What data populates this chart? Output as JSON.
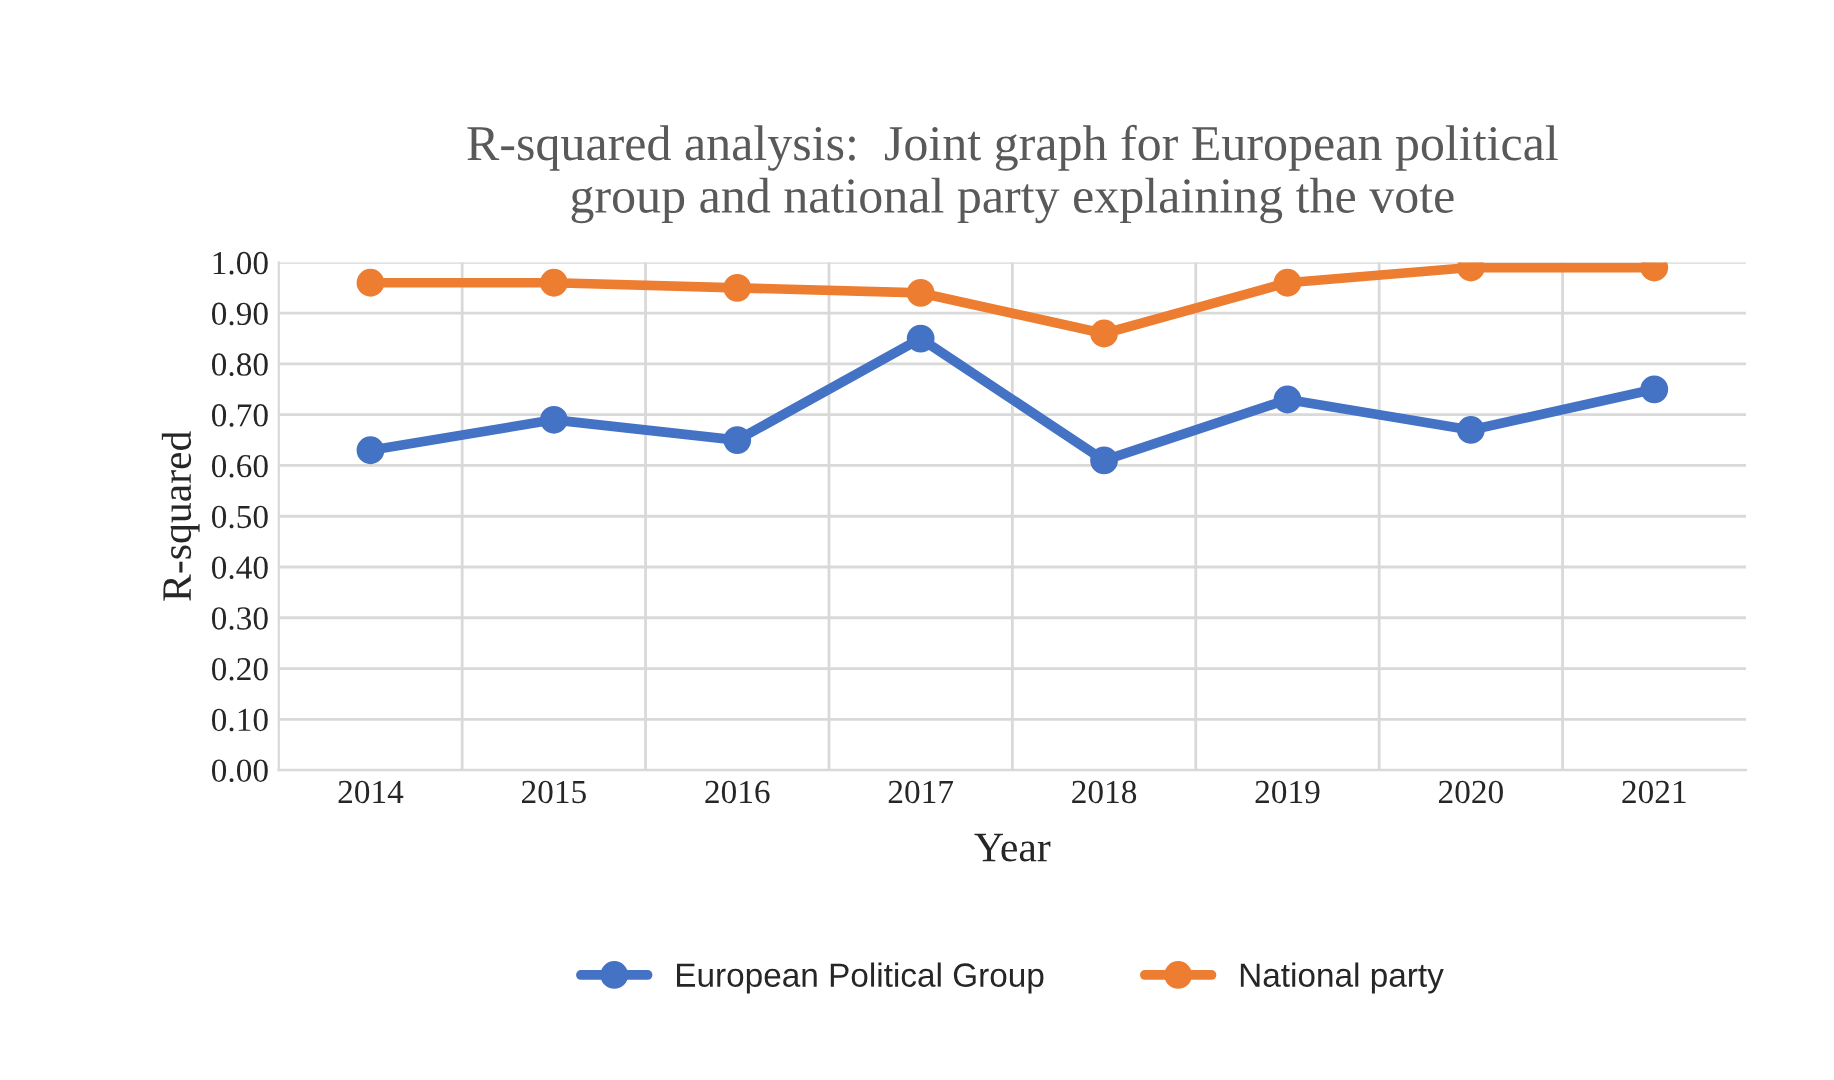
{
  "chart_data": {
    "type": "line",
    "title": "R-squared analysis:  Joint graph for European political\ngroup and national party explaining the vote",
    "xlabel": "Year",
    "ylabel": "R-squared",
    "categories": [
      "2014",
      "2015",
      "2016",
      "2017",
      "2018",
      "2019",
      "2020",
      "2021"
    ],
    "series": [
      {
        "name": "European Political Group",
        "color": "#4472c4",
        "values": [
          0.63,
          0.69,
          0.65,
          0.85,
          0.61,
          0.73,
          0.67,
          0.75
        ]
      },
      {
        "name": "National party",
        "color": "#ed7d31",
        "values": [
          0.96,
          0.96,
          0.95,
          0.94,
          0.86,
          0.96,
          0.99,
          0.99
        ]
      }
    ],
    "ylim": [
      0,
      1
    ],
    "yticks": [
      {
        "value": 0,
        "label": "0.00"
      },
      {
        "value": 0.1,
        "label": "0.10"
      },
      {
        "value": 0.2,
        "label": "0.20"
      },
      {
        "value": 0.3,
        "label": "0.30"
      },
      {
        "value": 0.4,
        "label": "0.40"
      },
      {
        "value": 0.5,
        "label": "0.50"
      },
      {
        "value": 0.6,
        "label": "0.60"
      },
      {
        "value": 0.7,
        "label": "0.70"
      },
      {
        "value": 0.8,
        "label": "0.80"
      },
      {
        "value": 0.9,
        "label": "0.90"
      },
      {
        "value": 1,
        "label": "1.00"
      }
    ],
    "grid": true,
    "legend": "bottom",
    "marker": "circle",
    "line_style": "solid"
  }
}
